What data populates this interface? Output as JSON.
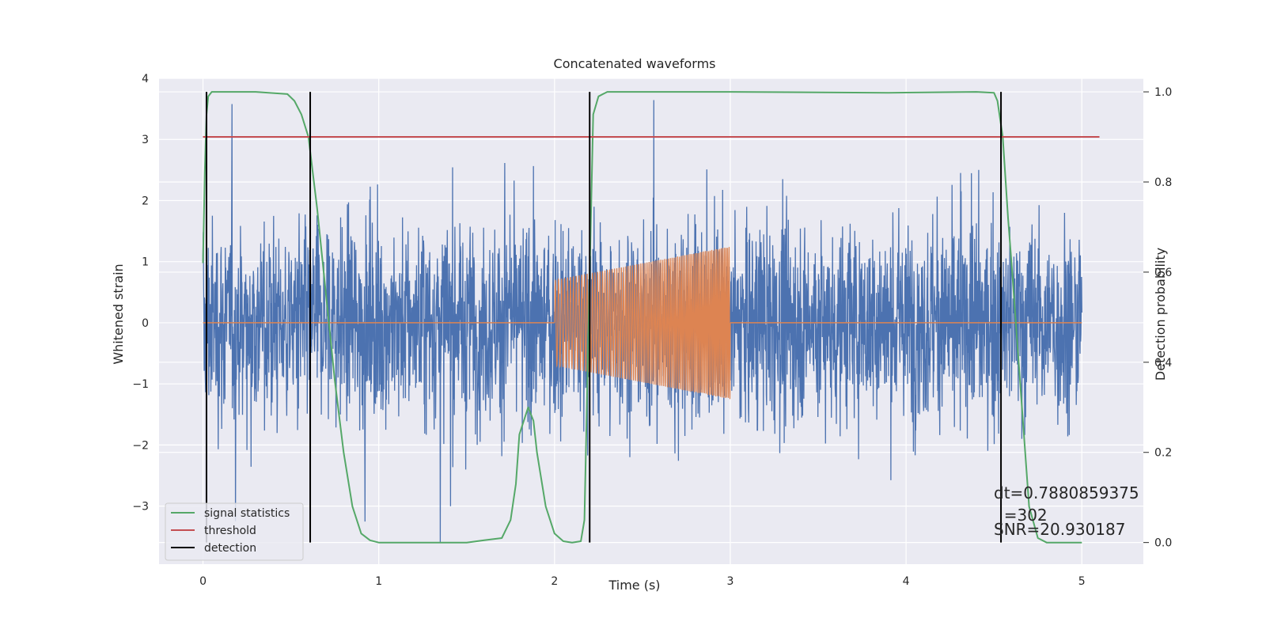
{
  "chart_data": {
    "type": "line",
    "title": "Concatenated waveforms",
    "xlabel": "Time (s)",
    "ylabel": "Whitened strain",
    "y2label": "Detection probability",
    "xlim": [
      -0.25,
      5.35
    ],
    "ylim": [
      -3.95,
      4.0
    ],
    "y2lim": [
      -0.048,
      1.03
    ],
    "grid": true,
    "legend_position": "lower-left",
    "x_ticks": [
      0,
      1,
      2,
      3,
      4,
      5
    ],
    "y_ticks": [
      -3,
      -2,
      -1,
      0,
      1,
      2,
      3,
      4
    ],
    "y2_ticks": [
      0.0,
      0.2,
      0.4,
      0.6,
      0.8,
      1.0
    ],
    "x_tick_labels": [
      "0",
      "1",
      "2",
      "3",
      "4",
      "5"
    ],
    "y_tick_labels": [
      "−3",
      "−2",
      "−1",
      "0",
      "1",
      "2",
      "3",
      "4"
    ],
    "y2_tick_labels": [
      "0.0",
      "0.2",
      "0.4",
      "0.6",
      "0.8",
      "1.0"
    ],
    "strain_noise": {
      "x_range": [
        0.0,
        5.0
      ],
      "approx_max": 3.7,
      "approx_min": -3.6,
      "color": "#4c72b0"
    },
    "injected_waveform": {
      "zero_ranges": [
        [
          0.0,
          2.0
        ],
        [
          3.0,
          5.0
        ]
      ],
      "chirp_range": [
        2.0,
        3.0
      ],
      "amplitude_start": 0.7,
      "amplitude_end": 1.25,
      "color": "#dd8452"
    },
    "series": [
      {
        "name": "signal statistics",
        "axis": "right",
        "color": "#55a868",
        "x": [
          0.0,
          0.01,
          0.02,
          0.03,
          0.05,
          0.08,
          0.1,
          0.3,
          0.48,
          0.52,
          0.56,
          0.6,
          0.65,
          0.7,
          0.75,
          0.8,
          0.85,
          0.9,
          0.95,
          1.0,
          1.5,
          1.6,
          1.7,
          1.75,
          1.78,
          1.8,
          1.85,
          1.88,
          1.9,
          1.95,
          2.0,
          2.05,
          2.1,
          2.15,
          2.17,
          2.2,
          2.22,
          2.25,
          2.3,
          2.5,
          3.0,
          3.9,
          4.4,
          4.5,
          4.52,
          4.55,
          4.58,
          4.6,
          4.65,
          4.7,
          4.75,
          4.8,
          5.0
        ],
        "y": [
          0.62,
          0.82,
          0.95,
          0.99,
          1.0,
          1.0,
          1.0,
          1.0,
          0.995,
          0.98,
          0.95,
          0.9,
          0.74,
          0.55,
          0.36,
          0.2,
          0.08,
          0.02,
          0.005,
          0.0,
          0.0,
          0.005,
          0.01,
          0.05,
          0.13,
          0.24,
          0.3,
          0.27,
          0.2,
          0.08,
          0.02,
          0.003,
          0.0,
          0.003,
          0.05,
          0.6,
          0.95,
          0.99,
          1.0,
          1.0,
          1.0,
          0.998,
          1.0,
          0.998,
          0.98,
          0.9,
          0.72,
          0.62,
          0.35,
          0.08,
          0.01,
          0.0,
          0.0
        ]
      },
      {
        "name": "threshold",
        "axis": "right",
        "color": "#c44e52",
        "x": [
          0.0,
          5.1
        ],
        "y": [
          0.9,
          0.9
        ]
      },
      {
        "name": "detection",
        "axis": "right",
        "color": "#000000",
        "x_lines": [
          0.02,
          0.61,
          2.2,
          4.54
        ],
        "y_range": [
          0.0,
          1.0
        ]
      }
    ],
    "legend": [
      {
        "label": "signal statistics",
        "color": "#55a868"
      },
      {
        "label": "threshold",
        "color": "#c44e52"
      },
      {
        "label": "detection",
        "color": "#000000"
      }
    ],
    "annotation": {
      "lines": [
        "dt=0.7880859375",
        "  =302",
        "SNR=20.930187"
      ]
    }
  },
  "colors": {
    "axes_bg": "#eaeaf2",
    "grid": "#ffffff",
    "text": "#262626"
  }
}
